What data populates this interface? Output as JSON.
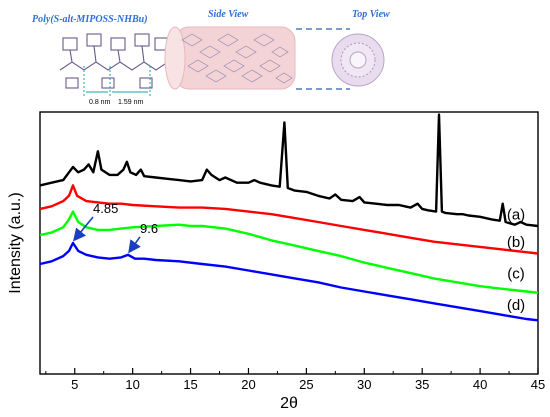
{
  "chart_data": {
    "type": "line",
    "xlabel": "2θ",
    "ylabel": "Intensity (a.u.)",
    "xlim": [
      2,
      45
    ],
    "xticks": [
      5,
      10,
      15,
      20,
      25,
      30,
      35,
      40,
      45
    ],
    "xtick_labels": [
      "5",
      "10",
      "15",
      "20",
      "25",
      "30",
      "35",
      "40",
      "45"
    ],
    "ylim": [
      0,
      100
    ],
    "grid": false,
    "inset": {
      "title": "Poly(S-alt-MIPOSS-NHBu)",
      "side_view_label": "Side View",
      "top_view_label": "Top View",
      "dim_1": "0.8 nm",
      "dim_2": "1.59 nm"
    },
    "series": [
      {
        "name": "(a)",
        "color": "#000000",
        "points": [
          [
            2,
            72
          ],
          [
            3,
            73
          ],
          [
            4,
            74
          ],
          [
            4.5,
            77
          ],
          [
            4.85,
            79
          ],
          [
            5.3,
            77
          ],
          [
            5.8,
            78
          ],
          [
            6.2,
            80
          ],
          [
            6.6,
            77
          ],
          [
            7,
            85
          ],
          [
            7.3,
            78
          ],
          [
            8,
            76
          ],
          [
            8.7,
            76
          ],
          [
            9.2,
            78
          ],
          [
            9.5,
            81
          ],
          [
            9.8,
            77
          ],
          [
            10.3,
            76
          ],
          [
            10.7,
            78
          ],
          [
            11,
            75.5
          ],
          [
            12,
            75
          ],
          [
            13,
            74.5
          ],
          [
            14,
            74
          ],
          [
            15,
            73.5
          ],
          [
            16,
            74
          ],
          [
            16.4,
            78
          ],
          [
            16.8,
            76
          ],
          [
            17.5,
            74
          ],
          [
            18,
            75
          ],
          [
            19,
            73
          ],
          [
            20,
            73
          ],
          [
            20.5,
            74
          ],
          [
            21,
            73
          ],
          [
            22,
            72
          ],
          [
            22.7,
            71.5
          ],
          [
            23.1,
            96
          ],
          [
            23.4,
            71
          ],
          [
            24,
            70
          ],
          [
            25,
            69.5
          ],
          [
            26,
            68
          ],
          [
            27,
            67
          ],
          [
            27.5,
            68.5
          ],
          [
            28,
            66.5
          ],
          [
            29,
            66
          ],
          [
            29.6,
            67.5
          ],
          [
            30,
            65.5
          ],
          [
            31,
            65
          ],
          [
            32,
            64.5
          ],
          [
            33,
            64.5
          ],
          [
            33.5,
            64
          ],
          [
            34,
            63.5
          ],
          [
            34.6,
            65
          ],
          [
            35,
            63
          ],
          [
            35.5,
            62.5
          ],
          [
            36.2,
            62
          ],
          [
            36.45,
            99
          ],
          [
            36.7,
            62
          ],
          [
            37,
            61.5
          ],
          [
            38,
            61
          ],
          [
            38.5,
            61
          ],
          [
            39,
            60.5
          ],
          [
            40,
            60
          ],
          [
            41,
            59
          ],
          [
            41.7,
            58.5
          ],
          [
            41.95,
            65
          ],
          [
            42.2,
            58
          ],
          [
            43,
            57
          ],
          [
            43.5,
            58
          ],
          [
            44,
            57
          ],
          [
            45,
            56.5
          ]
        ]
      },
      {
        "name": "(b)",
        "color": "#ff0000",
        "points": [
          [
            2,
            63
          ],
          [
            3,
            64
          ],
          [
            4,
            66
          ],
          [
            4.5,
            68
          ],
          [
            4.85,
            72
          ],
          [
            5.2,
            68
          ],
          [
            6,
            66
          ],
          [
            7,
            65.5
          ],
          [
            8,
            65
          ],
          [
            9,
            65
          ],
          [
            10,
            64.5
          ],
          [
            12,
            64
          ],
          [
            14,
            63.5
          ],
          [
            16,
            63.5
          ],
          [
            18,
            63
          ],
          [
            20,
            62
          ],
          [
            22,
            61
          ],
          [
            24,
            59.5
          ],
          [
            26,
            58
          ],
          [
            28,
            56.5
          ],
          [
            30,
            55
          ],
          [
            32,
            53.5
          ],
          [
            34,
            52
          ],
          [
            36,
            50.5
          ],
          [
            38,
            49.5
          ],
          [
            40,
            48.5
          ],
          [
            42,
            47.5
          ],
          [
            44,
            46.5
          ],
          [
            45,
            46
          ]
        ]
      },
      {
        "name": "(c)",
        "color": "#00ff00",
        "points": [
          [
            2,
            53
          ],
          [
            3,
            54
          ],
          [
            4,
            56
          ],
          [
            4.5,
            59
          ],
          [
            4.85,
            62
          ],
          [
            5.3,
            58
          ],
          [
            6,
            56
          ],
          [
            7,
            55
          ],
          [
            8,
            55
          ],
          [
            9,
            55.5
          ],
          [
            10,
            56
          ],
          [
            12,
            56.5
          ],
          [
            14,
            57
          ],
          [
            15,
            56.5
          ],
          [
            16,
            56.5
          ],
          [
            18,
            55.5
          ],
          [
            20,
            53.5
          ],
          [
            22,
            51
          ],
          [
            24,
            49
          ],
          [
            26,
            47
          ],
          [
            28,
            45
          ],
          [
            30,
            42.5
          ],
          [
            32,
            40.5
          ],
          [
            34,
            38.5
          ],
          [
            36,
            36.5
          ],
          [
            38,
            35
          ],
          [
            40,
            33.5
          ],
          [
            42,
            32.5
          ],
          [
            44,
            31.5
          ],
          [
            45,
            31
          ]
        ]
      },
      {
        "name": "(d)",
        "color": "#0000ff",
        "points": [
          [
            2,
            42
          ],
          [
            3,
            43
          ],
          [
            4,
            45
          ],
          [
            4.5,
            47
          ],
          [
            4.85,
            50
          ],
          [
            5.3,
            47
          ],
          [
            6,
            45.5
          ],
          [
            7,
            44.5
          ],
          [
            8,
            44
          ],
          [
            9,
            44.5
          ],
          [
            9.6,
            45.5
          ],
          [
            10.2,
            44
          ],
          [
            11,
            44
          ],
          [
            12,
            43.5
          ],
          [
            14,
            43
          ],
          [
            16,
            42
          ],
          [
            18,
            41
          ],
          [
            20,
            39.5
          ],
          [
            22,
            38
          ],
          [
            24,
            36.5
          ],
          [
            26,
            35
          ],
          [
            28,
            33
          ],
          [
            30,
            31.5
          ],
          [
            32,
            30
          ],
          [
            34,
            28.5
          ],
          [
            36,
            27
          ],
          [
            38,
            25.5
          ],
          [
            40,
            24
          ],
          [
            42,
            22.5
          ],
          [
            44,
            21
          ],
          [
            45,
            20.5
          ]
        ]
      }
    ],
    "series_labels": [
      {
        "text": "(a)",
        "x": 45,
        "y": 59
      },
      {
        "text": "(b)",
        "x": 45,
        "y": 48.5
      },
      {
        "text": "(c)",
        "x": 45,
        "y": 36.5
      },
      {
        "text": "(d)",
        "x": 45,
        "y": 24.5
      }
    ],
    "annotations": [
      {
        "text": "4.85",
        "x": 4.85,
        "y": 50
      },
      {
        "text": "9.6",
        "x": 9.6,
        "y": 45.5
      }
    ]
  }
}
